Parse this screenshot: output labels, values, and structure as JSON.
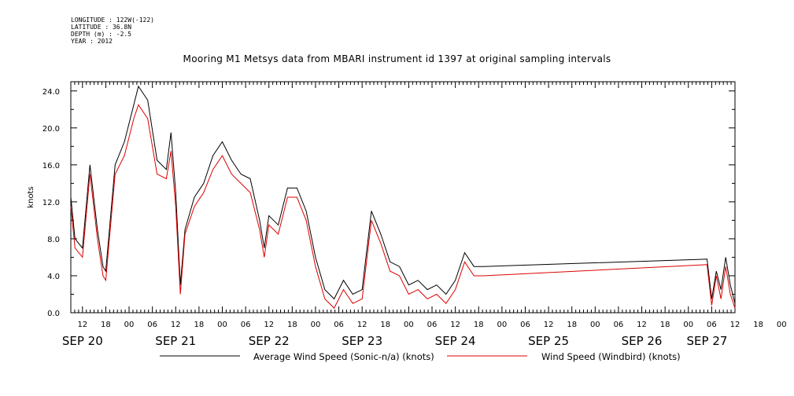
{
  "header": {
    "longitude": "LONGITUDE : 122W(-122)",
    "latitude": "LATITUDE : 36.8N",
    "depth": "DEPTH (m) : -2.5",
    "year": "YEAR : 2012"
  },
  "chart_data": {
    "type": "line",
    "title": "Mooring M1 Metsys data from MBARI instrument id 1397 at original sampling intervals",
    "ylabel": "knots",
    "xlabel": "",
    "ylim": [
      0,
      25
    ],
    "xlim_hours_from": "SEP 20 09:00",
    "y_ticks": [
      "0.0",
      "4.0",
      "8.0",
      "12.0",
      "16.0",
      "20.0",
      "24.0"
    ],
    "x_hour_labels": [
      "12",
      "18",
      "00",
      "06",
      "12",
      "18",
      "00",
      "06",
      "12",
      "18",
      "00",
      "06",
      "12",
      "18",
      "00",
      "06",
      "12",
      "18",
      "00",
      "06",
      "12",
      "18",
      "00",
      "06",
      "12",
      "18",
      "00",
      "06",
      "12",
      "18",
      "00",
      "06"
    ],
    "day_labels": [
      "SEP 20",
      "SEP 21",
      "SEP 22",
      "SEP 23",
      "SEP 24",
      "SEP 25",
      "SEP 26",
      "SEP 27"
    ],
    "grid": false,
    "legend_placement": "bottom",
    "series": [
      {
        "name": "Average Wind Speed (Sonic-n/a) (knots)",
        "color": "#000000",
        "x_day": [
          20.375,
          20.42,
          20.5,
          20.58,
          20.66,
          20.72,
          20.75,
          20.85,
          20.95,
          21.05,
          21.1,
          21.2,
          21.3,
          21.4,
          21.45,
          21.5,
          21.55,
          21.6,
          21.7,
          21.8,
          21.9,
          22.0,
          22.1,
          22.2,
          22.3,
          22.4,
          22.45,
          22.5,
          22.6,
          22.7,
          22.8,
          22.9,
          23.0,
          23.1,
          23.2,
          23.3,
          23.4,
          23.5,
          23.6,
          23.7,
          23.8,
          23.9,
          24.0,
          24.1,
          24.2,
          24.3,
          24.4,
          24.5,
          24.6,
          24.7,
          24.75,
          24.8,
          27.2,
          27.25,
          27.3,
          27.35,
          27.4,
          27.45,
          27.5
        ],
        "values": [
          12.5,
          8.0,
          7.0,
          16.0,
          9.0,
          5.0,
          4.5,
          16.0,
          18.5,
          22.5,
          24.5,
          23.0,
          16.5,
          15.5,
          19.5,
          13.0,
          3.0,
          9.0,
          12.5,
          14.0,
          17.0,
          18.5,
          16.5,
          15.0,
          14.5,
          10.0,
          7.0,
          10.5,
          9.5,
          13.5,
          13.5,
          11.0,
          6.0,
          2.5,
          1.5,
          3.5,
          2.0,
          2.5,
          11.0,
          8.5,
          5.5,
          5.0,
          3.0,
          3.5,
          2.5,
          3.0,
          2.0,
          3.5,
          6.5,
          5.0,
          5.0,
          5.0,
          5.8,
          1.5,
          4.5,
          2.5,
          6.0,
          3.0,
          1.0
        ]
      },
      {
        "name": "Wind Speed (Windbird) (knots)",
        "color": "#dd0000",
        "x_day": [
          20.375,
          20.42,
          20.5,
          20.58,
          20.66,
          20.72,
          20.75,
          20.85,
          20.95,
          21.05,
          21.1,
          21.2,
          21.3,
          21.4,
          21.45,
          21.5,
          21.55,
          21.6,
          21.7,
          21.8,
          21.9,
          22.0,
          22.1,
          22.2,
          22.3,
          22.4,
          22.45,
          22.5,
          22.6,
          22.7,
          22.8,
          22.9,
          23.0,
          23.1,
          23.2,
          23.3,
          23.4,
          23.5,
          23.6,
          23.7,
          23.8,
          23.9,
          24.0,
          24.1,
          24.2,
          24.3,
          24.4,
          24.5,
          24.6,
          24.7,
          24.75,
          24.8,
          27.2,
          27.25,
          27.3,
          27.35,
          27.4,
          27.45,
          27.5
        ],
        "values": [
          11.5,
          7.0,
          6.0,
          15.0,
          8.0,
          4.0,
          3.5,
          15.0,
          17.0,
          21.0,
          22.5,
          21.0,
          15.0,
          14.5,
          17.5,
          11.5,
          2.0,
          8.5,
          11.5,
          13.0,
          15.5,
          17.0,
          15.0,
          14.0,
          13.0,
          9.0,
          6.0,
          9.5,
          8.5,
          12.5,
          12.5,
          10.0,
          5.0,
          1.5,
          0.5,
          2.5,
          1.0,
          1.5,
          10.0,
          7.5,
          4.5,
          4.0,
          2.0,
          2.5,
          1.5,
          2.0,
          1.0,
          2.5,
          5.5,
          4.0,
          4.0,
          4.0,
          5.2,
          0.8,
          4.0,
          1.5,
          5.0,
          2.0,
          0.5
        ]
      }
    ]
  }
}
